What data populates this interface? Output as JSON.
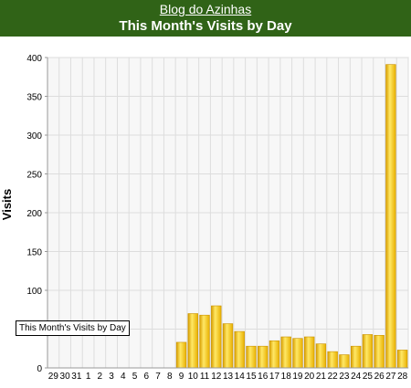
{
  "header": {
    "site_name": "Blog do Azinhas",
    "title": "This Month's Visits by Day"
  },
  "tooltip": {
    "text": "This Month's Visits by Day"
  },
  "colors": {
    "header_bg": "#306317",
    "bar": "#f5c518",
    "bar_light": "#ffe866",
    "bar_dark": "#d89e00"
  },
  "chart_data": {
    "type": "bar",
    "title": "This Month's Visits by Day",
    "xlabel": "",
    "ylabel": "Visits",
    "ylim": [
      0,
      400
    ],
    "yticks": [
      0,
      50,
      100,
      150,
      200,
      250,
      300,
      350,
      400
    ],
    "grid": true,
    "categories": [
      "29",
      "30",
      "31",
      "1",
      "2",
      "3",
      "4",
      "5",
      "6",
      "7",
      "8",
      "9",
      "10",
      "11",
      "12",
      "13",
      "14",
      "15",
      "16",
      "17",
      "18",
      "19",
      "20",
      "21",
      "22",
      "23",
      "24",
      "25",
      "26",
      "27",
      "28"
    ],
    "values": [
      0,
      0,
      0,
      0,
      0,
      0,
      0,
      0,
      0,
      0,
      0,
      33,
      70,
      68,
      80,
      57,
      47,
      28,
      28,
      35,
      40,
      38,
      40,
      31,
      21,
      17,
      28,
      43,
      42,
      391,
      23
    ]
  }
}
